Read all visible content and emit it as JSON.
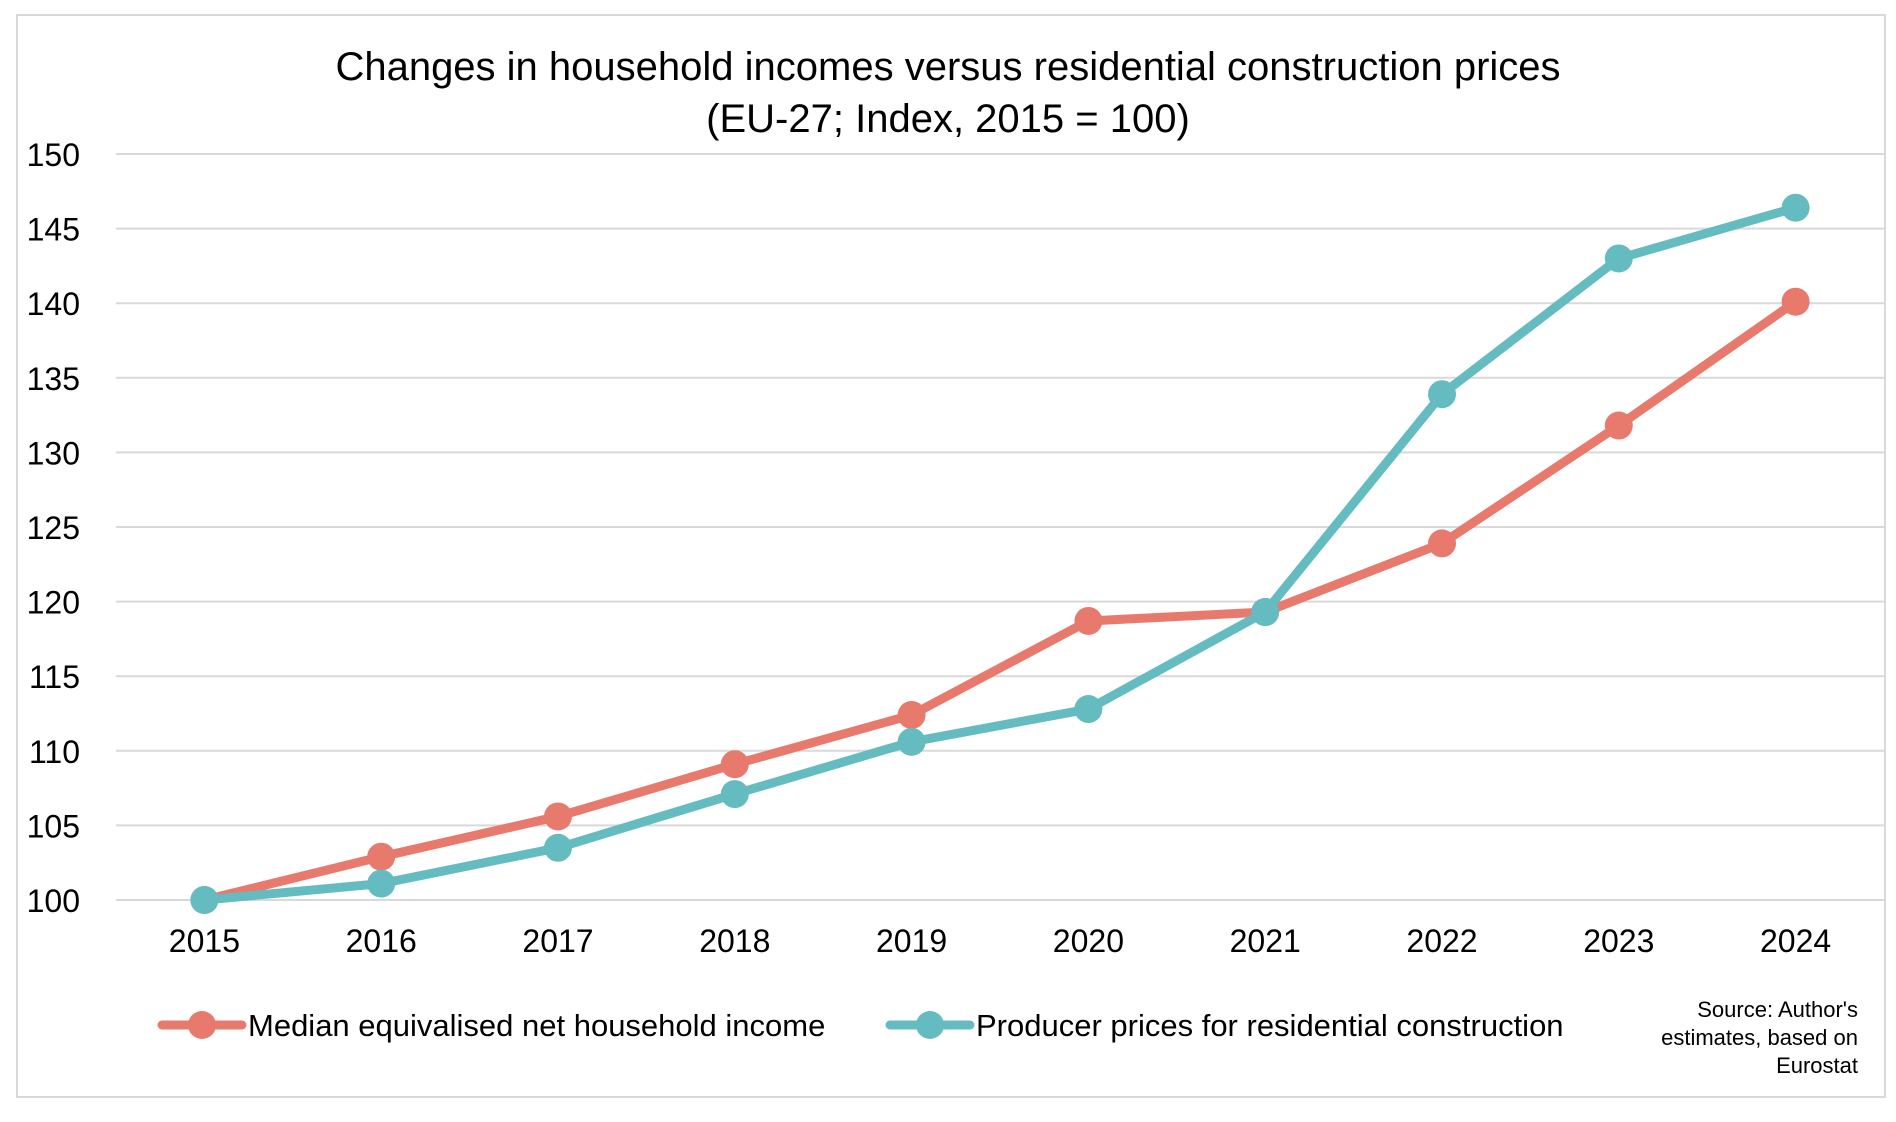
{
  "chart_data": {
    "type": "line",
    "title": "Changes in household incomes versus residential construction prices",
    "subtitle": "(EU-27; Index, 2015 = 100)",
    "categories": [
      "2015",
      "2016",
      "2017",
      "2018",
      "2019",
      "2020",
      "2021",
      "2022",
      "2023",
      "2024"
    ],
    "series": [
      {
        "name": "Median equivalised net household income",
        "color": "#e8796d",
        "values": [
          100,
          102.9,
          105.6,
          109.1,
          112.4,
          118.7,
          119.3,
          123.9,
          131.8,
          140.1
        ]
      },
      {
        "name": "Producer prices for residential construction",
        "color": "#65bcc0",
        "values": [
          100,
          101.1,
          103.5,
          107.1,
          110.6,
          112.8,
          119.3,
          133.9,
          143.0,
          146.4
        ]
      }
    ],
    "ylim": [
      100,
      150
    ],
    "yticks": [
      100,
      105,
      110,
      115,
      120,
      125,
      130,
      135,
      140,
      145,
      150
    ],
    "grid": true,
    "legend": "bottom",
    "xlabel": "",
    "ylabel": ""
  },
  "source": {
    "line1": "Source: Author's",
    "line2": "estimates, based on",
    "line3": "Eurostat"
  }
}
